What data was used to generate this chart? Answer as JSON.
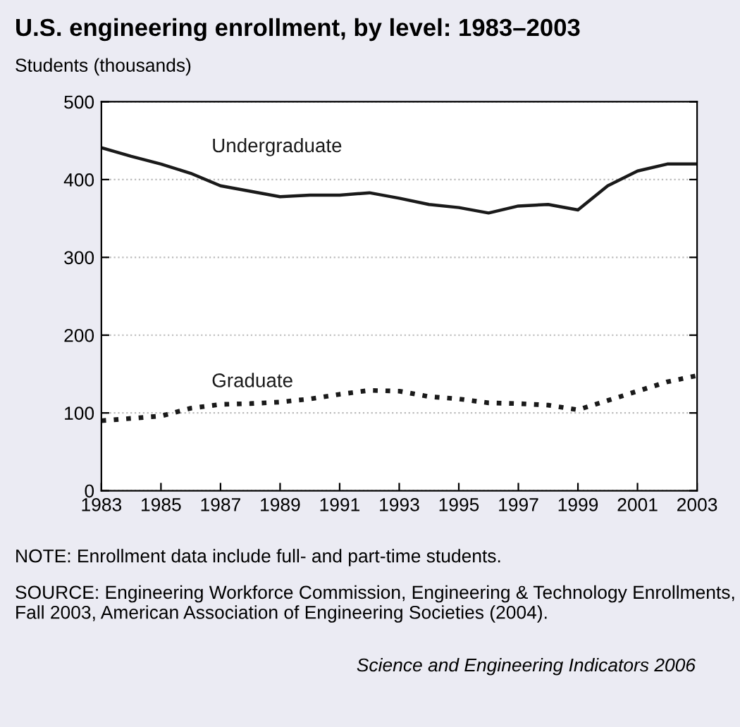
{
  "chart_data": {
    "type": "line",
    "title": "U.S. engineering enrollment, by level: 1983–2003",
    "ylabel": "Students (thousands)",
    "x": [
      1983,
      1984,
      1985,
      1986,
      1987,
      1988,
      1989,
      1990,
      1991,
      1992,
      1993,
      1994,
      1995,
      1996,
      1997,
      1998,
      1999,
      2000,
      2001,
      2002,
      2003
    ],
    "series": [
      {
        "name": "Undergraduate",
        "color": "#1a1a1a",
        "line_style": "solid",
        "values": [
          441,
          430,
          420,
          408,
          392,
          385,
          378,
          380,
          380,
          383,
          376,
          368,
          364,
          357,
          366,
          368,
          361,
          392,
          411,
          420,
          420
        ]
      },
      {
        "name": "Graduate",
        "color": "#1a1a1a",
        "line_style": "dotted",
        "values": [
          90,
          93,
          96,
          106,
          111,
          112,
          114,
          118,
          124,
          129,
          128,
          121,
          118,
          113,
          112,
          110,
          104,
          116,
          128,
          140,
          148
        ]
      }
    ],
    "xlim": [
      1983,
      2003
    ],
    "xticks": [
      1983,
      1985,
      1987,
      1989,
      1991,
      1993,
      1995,
      1997,
      1999,
      2001,
      2003
    ],
    "ylim": [
      0,
      500
    ],
    "yticks": [
      0,
      100,
      200,
      300,
      400,
      500
    ],
    "grid": "y",
    "legend": false,
    "annotations": [
      "NOTE: Enrollment data include full- and part-time students.",
      "SOURCE: Engineering Workforce Commission, Engineering & Technology Enrollments, Fall 2003, American Association of Engineering Societies (2004).",
      "Science and Engineering Indicators 2006"
    ]
  }
}
